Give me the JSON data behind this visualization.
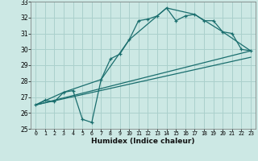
{
  "title": "",
  "xlabel": "Humidex (Indice chaleur)",
  "bg_color": "#cce8e4",
  "grid_color": "#aad0cc",
  "line_color": "#1a6e6e",
  "xlim": [
    -0.5,
    23.5
  ],
  "ylim": [
    25,
    33
  ],
  "xticks": [
    0,
    1,
    2,
    3,
    4,
    5,
    6,
    7,
    8,
    9,
    10,
    11,
    12,
    13,
    14,
    15,
    16,
    17,
    18,
    19,
    20,
    21,
    22,
    23
  ],
  "yticks": [
    25,
    26,
    27,
    28,
    29,
    30,
    31,
    32,
    33
  ],
  "series0": {
    "x": [
      0,
      1,
      2,
      3,
      4,
      5,
      6,
      7,
      8,
      9,
      10,
      11,
      12,
      13,
      14,
      15,
      16,
      17,
      18,
      19,
      20,
      21,
      22,
      23
    ],
    "y": [
      26.5,
      26.8,
      26.7,
      27.3,
      27.4,
      25.6,
      25.4,
      28.1,
      29.4,
      29.7,
      30.6,
      31.8,
      31.9,
      32.1,
      32.6,
      31.8,
      32.1,
      32.2,
      31.8,
      31.8,
      31.1,
      31.0,
      30.0,
      29.9
    ]
  },
  "series1": {
    "x": [
      0,
      3,
      7,
      10,
      14,
      17,
      20,
      23
    ],
    "y": [
      26.5,
      27.3,
      28.1,
      30.6,
      32.6,
      32.2,
      31.1,
      29.9
    ]
  },
  "series2": {
    "x": [
      0,
      23
    ],
    "y": [
      26.5,
      29.9
    ]
  },
  "series3": {
    "x": [
      0,
      23
    ],
    "y": [
      26.5,
      29.5
    ]
  }
}
